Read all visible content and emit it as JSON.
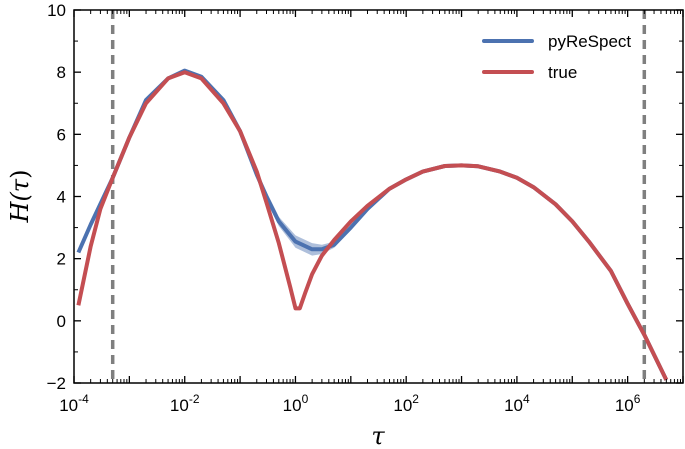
{
  "chart_data": {
    "type": "line",
    "xscale": "log",
    "xlabel_base": "τ",
    "ylabel_base": "H(",
    "ylabel_arg": "τ",
    "ylabel_close": ")",
    "xlim": [
      0.0001,
      10000000
    ],
    "ylim": [
      -2,
      10
    ],
    "x_ticks": [
      {
        "base": "10",
        "exp": "-4",
        "value": 0.0001
      },
      {
        "base": "10",
        "exp": "-2",
        "value": 0.01
      },
      {
        "base": "10",
        "exp": "0",
        "value": 1
      },
      {
        "base": "10",
        "exp": "2",
        "value": 100
      },
      {
        "base": "10",
        "exp": "4",
        "value": 10000
      },
      {
        "base": "10",
        "exp": "6",
        "value": 1000000
      }
    ],
    "y_ticks": [
      {
        "label": "−2",
        "value": -2
      },
      {
        "label": "0",
        "value": 0
      },
      {
        "label": "2",
        "value": 2
      },
      {
        "label": "4",
        "value": 4
      },
      {
        "label": "6",
        "value": 6
      },
      {
        "label": "8",
        "value": 8
      },
      {
        "label": "10",
        "value": 10
      }
    ],
    "vlines": [
      0.0005,
      2000000
    ],
    "legend_position": "top-right",
    "grid": false,
    "series": [
      {
        "name": "pyReSpect",
        "color": "#4c72b0",
        "x": [
          0.00012,
          0.0002,
          0.0005,
          0.001,
          0.002,
          0.005,
          0.01,
          0.02,
          0.05,
          0.1,
          0.2,
          0.3,
          0.5,
          1,
          2,
          3,
          5,
          10,
          20,
          50,
          100,
          200,
          500,
          1000,
          2000,
          5000,
          10000,
          20000,
          50000,
          100000,
          200000,
          500000,
          1000000,
          2000000,
          5000000
        ],
        "y": [
          2.2,
          3.1,
          4.6,
          5.9,
          7.1,
          7.8,
          8.05,
          7.85,
          7.1,
          6.1,
          4.7,
          4.0,
          3.2,
          2.55,
          2.3,
          2.3,
          2.45,
          3.0,
          3.6,
          4.25,
          4.55,
          4.8,
          4.98,
          5.0,
          4.97,
          4.8,
          4.6,
          4.3,
          3.75,
          3.2,
          2.55,
          1.6,
          0.55,
          -0.45,
          -1.9
        ],
        "band_lower": [
          2.2,
          3.1,
          4.6,
          5.9,
          7.1,
          7.8,
          8.05,
          7.85,
          7.1,
          6.1,
          4.6,
          3.85,
          3.05,
          2.35,
          2.1,
          2.15,
          2.35,
          2.95,
          3.6,
          4.25,
          4.55,
          4.8,
          4.98,
          5.0,
          4.97,
          4.8,
          4.6,
          4.3,
          3.75,
          3.2,
          2.55,
          1.6,
          0.55,
          -0.45,
          -1.9
        ],
        "band_upper": [
          2.2,
          3.1,
          4.6,
          5.9,
          7.1,
          7.8,
          8.05,
          7.85,
          7.1,
          6.1,
          4.8,
          4.15,
          3.35,
          2.75,
          2.5,
          2.45,
          2.55,
          3.05,
          3.6,
          4.25,
          4.55,
          4.8,
          4.98,
          5.0,
          4.97,
          4.8,
          4.6,
          4.3,
          3.75,
          3.2,
          2.55,
          1.6,
          0.55,
          -0.45,
          -1.9
        ]
      },
      {
        "name": "true",
        "color": "#c44e52",
        "x": [
          0.00012,
          0.0002,
          0.0003,
          0.0005,
          0.001,
          0.002,
          0.005,
          0.01,
          0.02,
          0.05,
          0.1,
          0.2,
          0.3,
          0.5,
          0.8,
          1,
          1.2,
          1.5,
          2,
          3,
          5,
          10,
          20,
          50,
          100,
          200,
          500,
          1000,
          2000,
          5000,
          10000,
          20000,
          50000,
          100000,
          200000,
          500000,
          1000000,
          2000000,
          5000000
        ],
        "y": [
          0.5,
          2.4,
          3.6,
          4.6,
          5.9,
          7.0,
          7.8,
          8.0,
          7.8,
          7.0,
          6.1,
          4.8,
          3.8,
          2.5,
          1.1,
          0.4,
          0.4,
          0.9,
          1.5,
          2.1,
          2.6,
          3.2,
          3.7,
          4.25,
          4.55,
          4.8,
          4.98,
          5.0,
          4.97,
          4.8,
          4.6,
          4.3,
          3.75,
          3.2,
          2.55,
          1.6,
          0.55,
          -0.45,
          -1.9
        ]
      }
    ]
  }
}
